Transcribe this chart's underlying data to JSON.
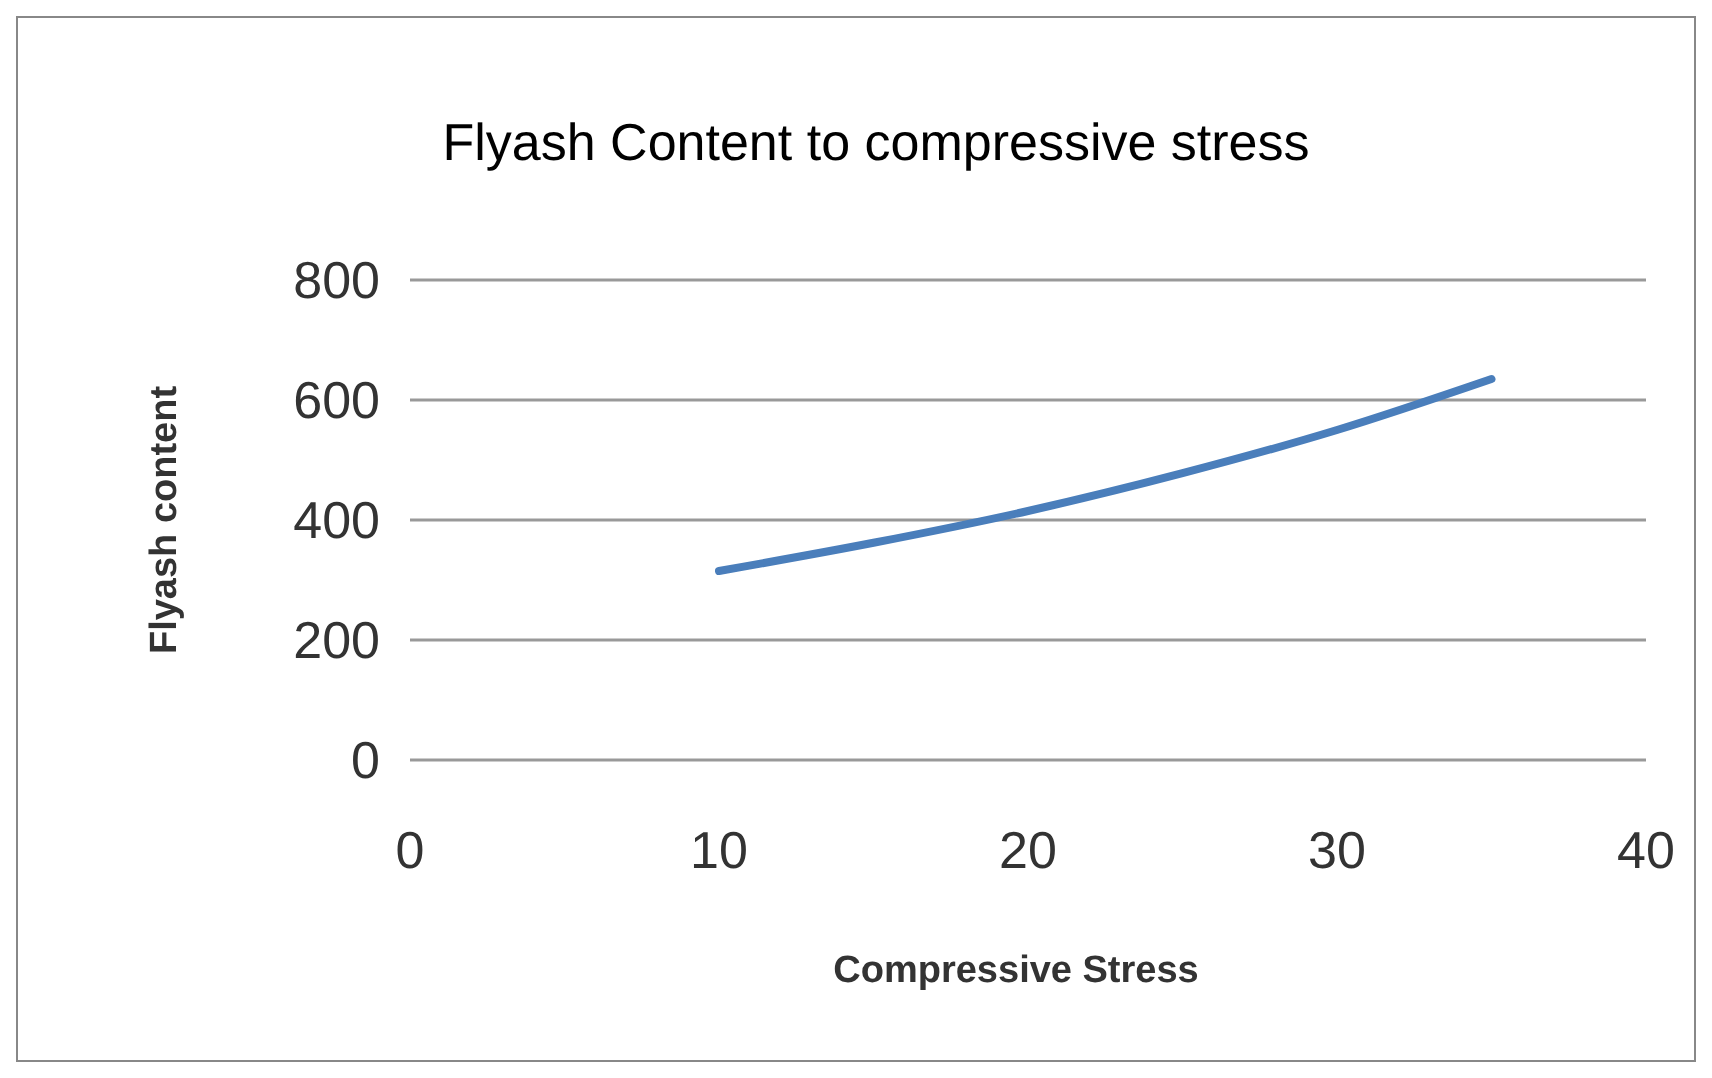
{
  "chart_data": {
    "type": "line",
    "title": "Flyash Content  to compressive stress",
    "xlabel": "Compressive Stress",
    "ylabel": "Flyash content",
    "x": [
      10,
      15,
      20,
      25,
      30,
      35
    ],
    "series": [
      {
        "color": "#4a7ebb",
        "values": [
          315,
          362,
          415,
          478,
          550,
          635
        ]
      }
    ],
    "xlim": [
      0,
      40
    ],
    "xticks": [
      0,
      10,
      20,
      30,
      40
    ],
    "ylim": [
      0,
      800
    ],
    "yticks": [
      0,
      200,
      400,
      600,
      800
    ],
    "grid": "y"
  }
}
